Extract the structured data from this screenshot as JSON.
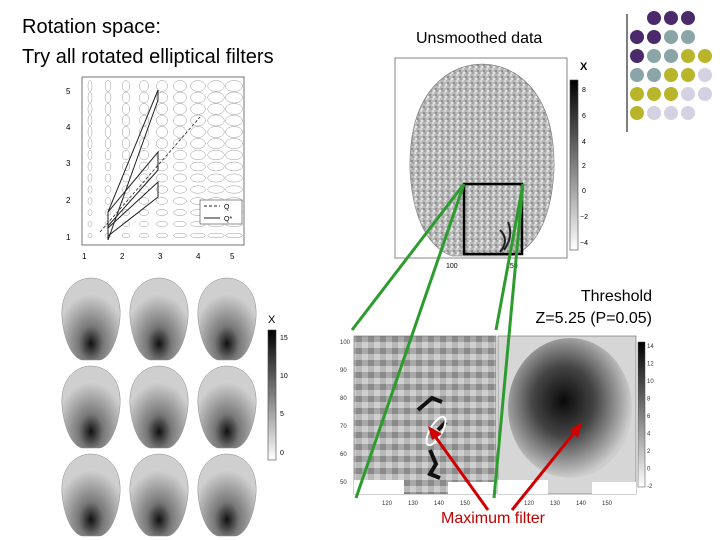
{
  "slide": {
    "title_lines": [
      "Rotation space:",
      "Try all rotated elliptical filters"
    ],
    "unsmoothed_title": "Unsmoothed data",
    "threshold_line1": "Threshold",
    "threshold_line2": "Z=5.25 (P=0.05)",
    "max_filter_label": "Maximum filter"
  },
  "rotation_plot": {
    "x_ticks": [
      "1",
      "2",
      "3",
      "4",
      "5"
    ],
    "y_ticks": [
      "1",
      "2",
      "3",
      "4",
      "5"
    ],
    "legend": [
      "Q",
      "Q*"
    ]
  },
  "unsmoothed_plot": {
    "colorbar_label": "X",
    "colorbar_ticks": [
      "8",
      "6",
      "4",
      "2",
      "0",
      "−2",
      "−4"
    ],
    "x_ticks": [
      "100",
      "150"
    ]
  },
  "filtered_grid": {
    "colorbar_label": "X",
    "colorbar_ticks": [
      "15",
      "10",
      "5",
      "0"
    ]
  },
  "zoom_left": {
    "y_ticks": [
      "100",
      "90",
      "80",
      "70",
      "60",
      "50"
    ],
    "x_ticks": [
      "120",
      "130",
      "140",
      "150"
    ]
  },
  "zoom_right": {
    "colorbar_ticks": [
      "14",
      "12",
      "10",
      "8",
      "6",
      "4",
      "2",
      "0",
      "-2"
    ],
    "x_ticks": [
      "120",
      "130",
      "140",
      "150"
    ]
  },
  "colors": {
    "connector": "#2e9b2e",
    "arrow": "#d00000",
    "purple": "#4a2a6a",
    "teal": "#8aa5a8",
    "olive": "#b9b52a",
    "lavender": "#d4d2e2"
  }
}
